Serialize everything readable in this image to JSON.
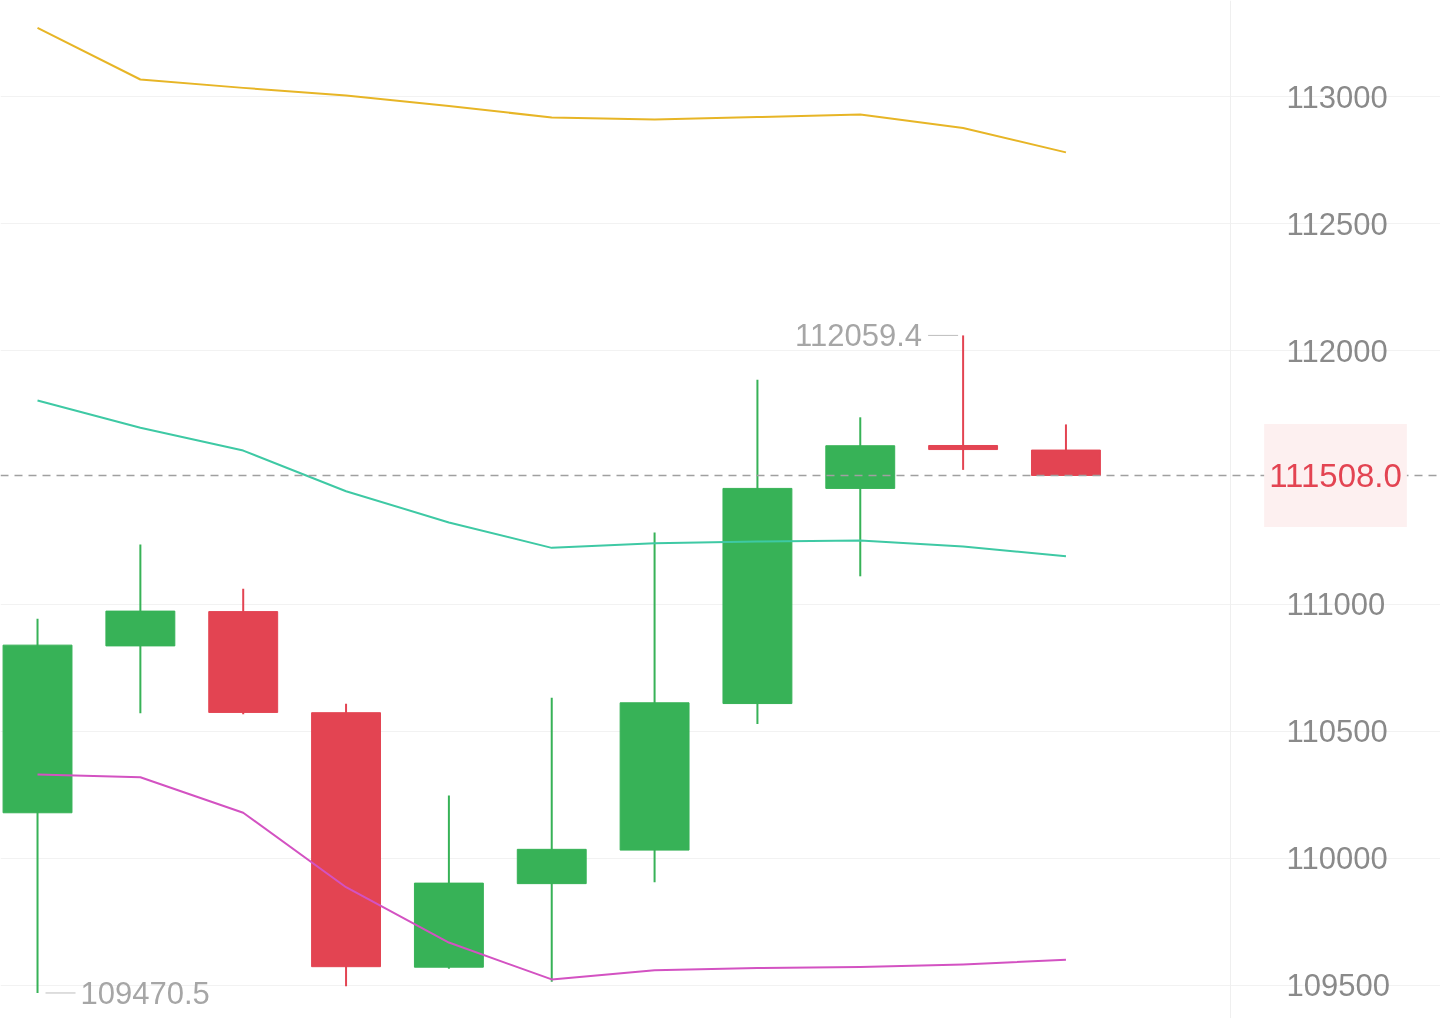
{
  "chart_data": {
    "type": "candlestick",
    "categories": [
      null,
      null,
      null,
      null,
      null,
      null,
      null,
      null,
      null,
      null,
      null
    ],
    "ohlc": [
      [
        110180,
        110944,
        109470.5,
        110840
      ],
      [
        110837,
        111236,
        110572,
        110974
      ],
      [
        110972,
        111062,
        110568,
        110575
      ],
      [
        110574,
        110609,
        109497,
        109574
      ],
      [
        109572,
        110248,
        109566,
        109903
      ],
      [
        109901,
        110633,
        109515,
        110036
      ],
      [
        110033,
        111283,
        109906,
        110613
      ],
      [
        110610,
        111885,
        110529,
        111457
      ],
      [
        111457,
        111737,
        111111,
        111625
      ],
      [
        111626,
        112059.4,
        111530,
        111610
      ],
      [
        111608,
        111709,
        111508.0,
        111508.0
      ]
    ],
    "colors": [
      "#37b257",
      "#37b257",
      "#e34452",
      "#e34452",
      "#37b257",
      "#37b257",
      "#37b257",
      "#37b257",
      "#37b257",
      "#e34452",
      "#e34452"
    ],
    "series": [
      {
        "type": "line",
        "color": "#e7b526",
        "values": [
          113270,
          113067,
          113034,
          113004,
          112963,
          112917,
          112909,
          112919,
          112929,
          112876,
          112780
        ]
      },
      {
        "type": "line",
        "color": "#3ec9a4",
        "values": [
          111803,
          111696,
          111606,
          111446,
          111323,
          111223,
          111241,
          111248,
          111252,
          111228,
          111190
        ]
      },
      {
        "type": "line",
        "color": "#d352c2",
        "values": [
          110331,
          110320,
          110180,
          109887,
          109669,
          109524,
          109560,
          109569,
          109573,
          109583,
          109601
        ]
      }
    ],
    "ylim": [
      109370,
      113378
    ],
    "yticks": [
      109500,
      110000,
      110500,
      111000,
      112000,
      112500,
      113000
    ],
    "grid": "y",
    "ref_lines": [
      {
        "axis": "y",
        "value": 111508.0,
        "label": "111508.0",
        "color": "#a0a0a0",
        "line_style": "dashed"
      }
    ],
    "annotations": [
      "112059.4",
      "109470.5"
    ]
  }
}
